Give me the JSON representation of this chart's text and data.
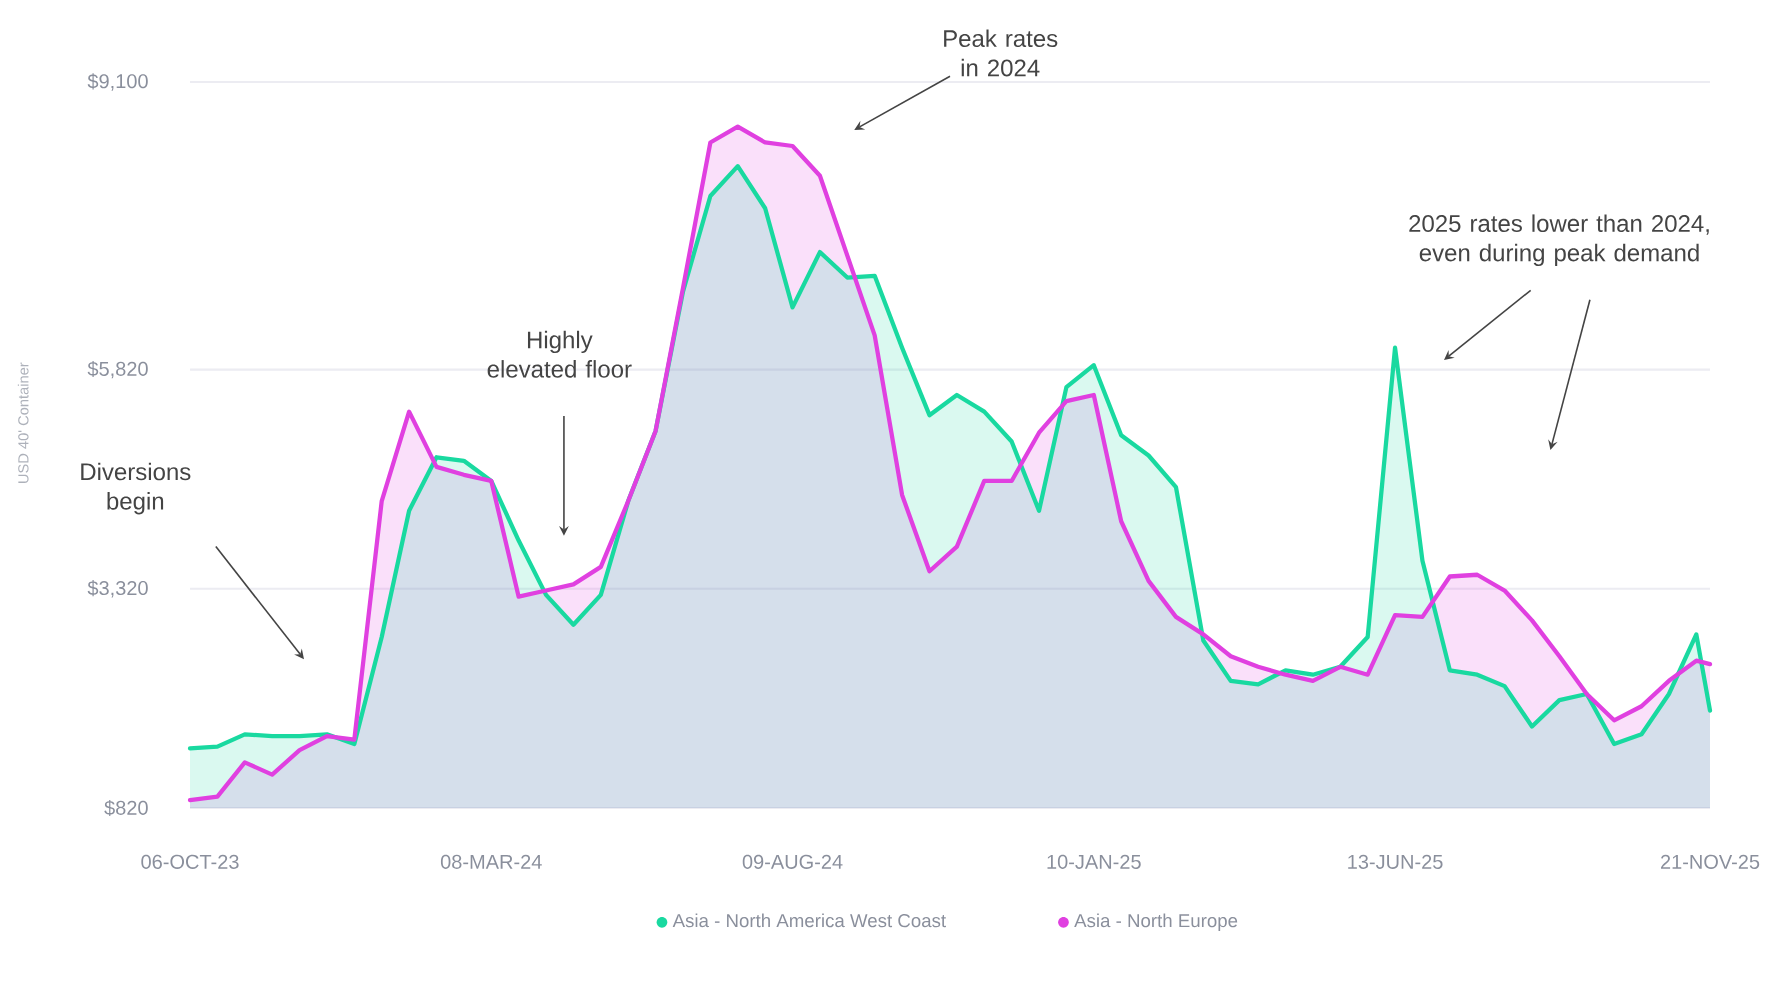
{
  "chart_data": {
    "type": "area",
    "ylabel": "USD 40' Container",
    "x": [
      "2023-10-06",
      "2023-10-20",
      "2023-11-03",
      "2023-11-17",
      "2023-12-01",
      "2023-12-15",
      "2023-12-29",
      "2024-01-12",
      "2024-01-26",
      "2024-02-09",
      "2024-02-23",
      "2024-03-08",
      "2024-03-22",
      "2024-04-05",
      "2024-04-19",
      "2024-05-03",
      "2024-05-17",
      "2024-05-31",
      "2024-06-14",
      "2024-06-28",
      "2024-07-12",
      "2024-07-26",
      "2024-08-09",
      "2024-08-23",
      "2024-09-06",
      "2024-09-20",
      "2024-10-04",
      "2024-10-18",
      "2024-11-01",
      "2024-11-15",
      "2024-11-29",
      "2024-12-13",
      "2024-12-27",
      "2025-01-10",
      "2025-01-24",
      "2025-02-07",
      "2025-02-21",
      "2025-03-07",
      "2025-03-21",
      "2025-04-04",
      "2025-04-18",
      "2025-05-02",
      "2025-05-16",
      "2025-05-30",
      "2025-06-13",
      "2025-06-27",
      "2025-07-11",
      "2025-07-25",
      "2025-08-08",
      "2025-08-22",
      "2025-09-05",
      "2025-09-19",
      "2025-10-03",
      "2025-10-17",
      "2025-10-31",
      "2025-11-14",
      "2025-11-21"
    ],
    "series": [
      {
        "name": "Asia - North America West Coast",
        "color": "#19d9a0",
        "values": [
          1500,
          1520,
          1660,
          1640,
          1640,
          1660,
          1550,
          2770,
          4210,
          4820,
          4780,
          4550,
          3870,
          3250,
          2910,
          3250,
          4320,
          5120,
          6710,
          7800,
          8140,
          7660,
          6530,
          7160,
          6870,
          6890,
          6070,
          5300,
          5530,
          5340,
          5000,
          4210,
          5620,
          5870,
          5070,
          4840,
          4480,
          2730,
          2270,
          2230,
          2390,
          2340,
          2430,
          2770,
          6070,
          3640,
          2390,
          2340,
          2210,
          1750,
          2050,
          2120,
          1550,
          1660,
          2120,
          2800,
          1930
        ]
      },
      {
        "name": "Asia - North Europe",
        "color": "#e040e0",
        "values": [
          910,
          950,
          1340,
          1200,
          1480,
          1640,
          1600,
          4320,
          5340,
          4710,
          4620,
          4550,
          3230,
          3300,
          3370,
          3570,
          4320,
          5120,
          6750,
          8410,
          8590,
          8410,
          8370,
          8030,
          7120,
          6210,
          4390,
          3520,
          3800,
          4550,
          4550,
          5100,
          5460,
          5530,
          4090,
          3410,
          3000,
          2800,
          2550,
          2430,
          2340,
          2270,
          2430,
          2340,
          3020,
          3000,
          3460,
          3480,
          3300,
          2960,
          2550,
          2120,
          1820,
          1980,
          2270,
          2500,
          2460
        ]
      }
    ],
    "xlim": [
      "2023-10-06",
      "2025-11-21"
    ],
    "xticks": [
      {
        "value": "2023-10-06",
        "label": "06-OCT-23"
      },
      {
        "value": "2024-03-08",
        "label": "08-MAR-24"
      },
      {
        "value": "2024-08-09",
        "label": "09-AUG-24"
      },
      {
        "value": "2025-01-10",
        "label": "10-JAN-25"
      },
      {
        "value": "2025-06-13",
        "label": "13-JUN-25"
      },
      {
        "value": "2025-11-21",
        "label": "21-NOV-25"
      }
    ],
    "ylim": [
      820,
      9100
    ],
    "yticks": [
      {
        "value": 820,
        "label": "$820"
      },
      {
        "value": 3320,
        "label": "$3,320"
      },
      {
        "value": 5820,
        "label": "$5,820"
      },
      {
        "value": 9100,
        "label": "$9,100"
      }
    ],
    "grid": "y",
    "legend": "bottom",
    "annotations": [
      "Diversions begin",
      "Highly elevated floor",
      "Peak rates in 2024",
      "2025 rates lower than 2024, even during peak demand"
    ]
  }
}
